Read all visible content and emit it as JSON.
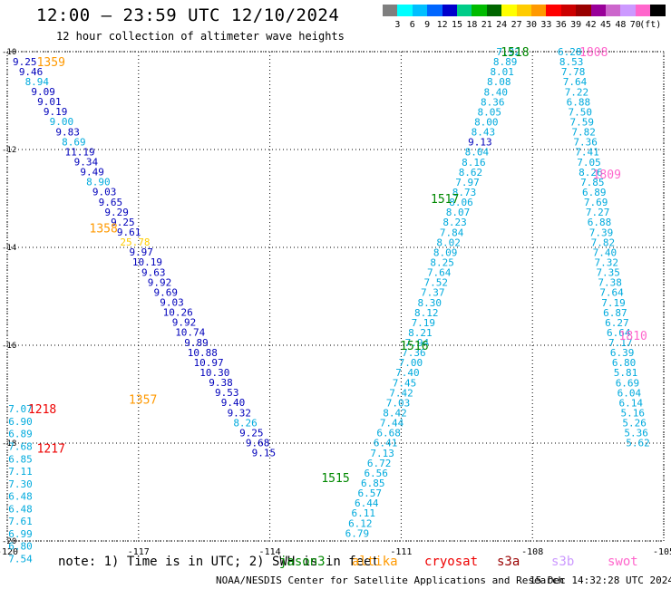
{
  "header": {
    "title": "12:00 – 23:59 UTC 12/10/2024",
    "subtitle": "12 hour collection of altimeter wave heights"
  },
  "legend": {
    "unit": "(ft)",
    "bins": [
      {
        "label": "",
        "color": "#7f7f7f"
      },
      {
        "label": "3",
        "color": "#00ffff"
      },
      {
        "label": "6",
        "color": "#00bfff"
      },
      {
        "label": "9",
        "color": "#0066ff"
      },
      {
        "label": "12",
        "color": "#0000cc"
      },
      {
        "label": "15",
        "color": "#00cc88"
      },
      {
        "label": "18",
        "color": "#00bb00"
      },
      {
        "label": "21",
        "color": "#006600"
      },
      {
        "label": "24",
        "color": "#ffff00"
      },
      {
        "label": "27",
        "color": "#ffcc00"
      },
      {
        "label": "30",
        "color": "#ff9900"
      },
      {
        "label": "33",
        "color": "#ff0000"
      },
      {
        "label": "36",
        "color": "#cc0000"
      },
      {
        "label": "39",
        "color": "#990000"
      },
      {
        "label": "42",
        "color": "#990099"
      },
      {
        "label": "45",
        "color": "#cc66cc"
      },
      {
        "label": "48",
        "color": "#cc99ff"
      },
      {
        "label": "70",
        "color": "#ff66cc"
      },
      {
        "label": "",
        "color": "#000000"
      }
    ]
  },
  "map": {
    "lon_range": [
      -120,
      -105
    ],
    "lat_range": [
      -20,
      -10
    ],
    "lon_ticks": [
      "-120",
      "-117",
      "-114",
      "-111",
      "-108",
      "-105"
    ],
    "lat_ticks": [
      "-10",
      "-12",
      "-14",
      "-16",
      "-18",
      "-20"
    ]
  },
  "colors": {
    "c1": "#00aadd",
    "c2": "#0000bb",
    "c3": "#ffcc00",
    "orange": "#ff9900",
    "red": "#ee0000",
    "green": "#008800",
    "pink": "#ff66cc"
  },
  "pass_labels": [
    {
      "text": "1359",
      "lon": -119.0,
      "lat": -10.2,
      "color": "#ff9900"
    },
    {
      "text": "1358",
      "lon": -117.8,
      "lat": -13.6,
      "color": "#ff9900"
    },
    {
      "text": "1357",
      "lon": -116.9,
      "lat": -17.1,
      "color": "#ff9900"
    },
    {
      "text": "1218",
      "lon": -119.2,
      "lat": -17.3,
      "color": "#ee0000"
    },
    {
      "text": "1217",
      "lon": -119.0,
      "lat": -18.1,
      "color": "#ee0000"
    },
    {
      "text": "1518",
      "lon": -108.4,
      "lat": -10.0,
      "color": "#008800"
    },
    {
      "text": "1517",
      "lon": -110.0,
      "lat": -13.0,
      "color": "#008800"
    },
    {
      "text": "1516",
      "lon": -110.7,
      "lat": -16.0,
      "color": "#008800"
    },
    {
      "text": "1515",
      "lon": -112.5,
      "lat": -18.7,
      "color": "#008800"
    },
    {
      "text": "1808",
      "lon": -106.6,
      "lat": -10.0,
      "color": "#ff66cc"
    },
    {
      "text": "1809",
      "lon": -106.3,
      "lat": -12.5,
      "color": "#ff66cc"
    },
    {
      "text": "1810",
      "lon": -105.7,
      "lat": -15.8,
      "color": "#ff66cc"
    }
  ],
  "tracks": [
    {
      "name": "1359",
      "start": [
        -119.6,
        -10.2
      ],
      "step": [
        0.14,
        -0.205
      ],
      "values": [
        [
          "9.25",
          "c2"
        ],
        [
          "9.46",
          "c2"
        ],
        [
          "8.94",
          "c1"
        ],
        [
          "9.09",
          "c2"
        ],
        [
          "9.01",
          "c2"
        ],
        [
          "9.19",
          "c2"
        ],
        [
          "9.00",
          "c1"
        ],
        [
          "9.83",
          "c2"
        ],
        [
          "8.69",
          "c1"
        ],
        [
          "11.19",
          "c2"
        ],
        [
          "9.34",
          "c2"
        ],
        [
          "9.49",
          "c2"
        ],
        [
          "8.90",
          "c1"
        ],
        [
          "9.03",
          "c2"
        ],
        [
          "9.65",
          "c2"
        ],
        [
          "9.29",
          "c2"
        ],
        [
          "9.25",
          "c2"
        ],
        [
          "9.61",
          "c2"
        ],
        [
          "25.78",
          "c3"
        ],
        [
          "9.97",
          "c2"
        ],
        [
          "10.19",
          "c2"
        ],
        [
          "9.63",
          "c2"
        ],
        [
          "9.92",
          "c2"
        ],
        [
          "9.69",
          "c2"
        ],
        [
          "9.03",
          "c2"
        ],
        [
          "10.26",
          "c2"
        ],
        [
          "9.92",
          "c2"
        ],
        [
          "10.74",
          "c2"
        ],
        [
          "9.89",
          "c2"
        ],
        [
          "10.88",
          "c2"
        ],
        [
          "10.97",
          "c2"
        ],
        [
          "10.30",
          "c2"
        ],
        [
          "9.38",
          "c2"
        ],
        [
          "9.53",
          "c2"
        ],
        [
          "9.40",
          "c2"
        ],
        [
          "9.32",
          "c2"
        ],
        [
          "8.26",
          "c1"
        ],
        [
          "9.25",
          "c2"
        ],
        [
          "9.68",
          "c2"
        ],
        [
          "9.15",
          "c2"
        ]
      ]
    },
    {
      "name": "1218",
      "start": [
        -119.7,
        -17.3
      ],
      "step": [
        0.0,
        -0.255
      ],
      "values": [
        [
          "7.07",
          "c1"
        ],
        [
          "6.90",
          "c1"
        ],
        [
          "6.89",
          "c1"
        ],
        [
          "7.68",
          "c1"
        ],
        [
          "6.85",
          "c1"
        ],
        [
          "7.11",
          "c1"
        ],
        [
          "7.30",
          "c1"
        ],
        [
          "6.48",
          "c1"
        ],
        [
          "6.48",
          "c1"
        ],
        [
          "7.61",
          "c1"
        ],
        [
          "6.99",
          "c1"
        ],
        [
          "6.80",
          "c1"
        ],
        [
          "7.54",
          "c1"
        ]
      ]
    },
    {
      "name": "1518",
      "start": [
        -108.55,
        -10.0
      ],
      "step": [
        -0.072,
        -0.205
      ],
      "values": [
        [
          "7.92",
          "c1"
        ],
        [
          "8.89",
          "c1"
        ],
        [
          "8.01",
          "c1"
        ],
        [
          "8.08",
          "c1"
        ],
        [
          "8.40",
          "c1"
        ],
        [
          "8.36",
          "c1"
        ],
        [
          "8.05",
          "c1"
        ],
        [
          "8.00",
          "c1"
        ],
        [
          "8.43",
          "c1"
        ],
        [
          "9.13",
          "c2"
        ],
        [
          "8.04",
          "c1"
        ],
        [
          "8.16",
          "c1"
        ],
        [
          "8.62",
          "c1"
        ],
        [
          "7.97",
          "c1"
        ],
        [
          "8.73",
          "c1"
        ],
        [
          "8.06",
          "c1"
        ],
        [
          "8.07",
          "c1"
        ],
        [
          "8.23",
          "c1"
        ],
        [
          "7.84",
          "c1"
        ],
        [
          "8.02",
          "c1"
        ],
        [
          "8.09",
          "c1"
        ],
        [
          "8.25",
          "c1"
        ],
        [
          "7.64",
          "c1"
        ],
        [
          "7.52",
          "c1"
        ],
        [
          "7.37",
          "c1"
        ],
        [
          "8.30",
          "c1"
        ],
        [
          "8.12",
          "c1"
        ],
        [
          "7.19",
          "c1"
        ],
        [
          "8.21",
          "c1"
        ],
        [
          "7.94",
          "c1"
        ],
        [
          "7.36",
          "c1"
        ],
        [
          "7.00",
          "c1"
        ],
        [
          "7.40",
          "c1"
        ],
        [
          "7.45",
          "c1"
        ],
        [
          "7.42",
          "c1"
        ],
        [
          "7.03",
          "c1"
        ],
        [
          "8.42",
          "c1"
        ],
        [
          "7.44",
          "c1"
        ],
        [
          "6.68",
          "c1"
        ],
        [
          "6.41",
          "c1"
        ],
        [
          "7.13",
          "c1"
        ],
        [
          "6.72",
          "c1"
        ],
        [
          "6.56",
          "c1"
        ],
        [
          "6.85",
          "c1"
        ],
        [
          "6.57",
          "c1"
        ],
        [
          "6.44",
          "c1"
        ],
        [
          "6.11",
          "c1"
        ],
        [
          "6.12",
          "c1"
        ],
        [
          "6.79",
          "c1"
        ]
      ]
    },
    {
      "name": "1808",
      "start": [
        -107.15,
        -10.0
      ],
      "step": [
        0.04,
        -0.205
      ],
      "values": [
        [
          "6.28",
          "c1"
        ],
        [
          "8.53",
          "c1"
        ],
        [
          "7.78",
          "c1"
        ],
        [
          "7.64",
          "c1"
        ],
        [
          "7.22",
          "c1"
        ],
        [
          "6.88",
          "c1"
        ],
        [
          "7.50",
          "c1"
        ],
        [
          "7.59",
          "c1"
        ],
        [
          "7.82",
          "c1"
        ],
        [
          "7.36",
          "c1"
        ],
        [
          "7.41",
          "c1"
        ],
        [
          "7.05",
          "c1"
        ],
        [
          "8.26",
          "c1"
        ],
        [
          "7.85",
          "c1"
        ],
        [
          "6.89",
          "c1"
        ],
        [
          "7.69",
          "c1"
        ],
        [
          "7.27",
          "c1"
        ],
        [
          "6.88",
          "c1"
        ],
        [
          "7.39",
          "c1"
        ],
        [
          "7.82",
          "c1"
        ],
        [
          "7.40",
          "c1"
        ],
        [
          "7.32",
          "c1"
        ],
        [
          "7.35",
          "c1"
        ],
        [
          "7.38",
          "c1"
        ],
        [
          "7.64",
          "c1"
        ],
        [
          "7.19",
          "c1"
        ],
        [
          "6.87",
          "c1"
        ],
        [
          "6.27",
          "c1"
        ],
        [
          "6.64",
          "c1"
        ],
        [
          "7.17",
          "c1"
        ],
        [
          "6.39",
          "c1"
        ],
        [
          "6.80",
          "c1"
        ],
        [
          "5.81",
          "c1"
        ],
        [
          "6.69",
          "c1"
        ],
        [
          "6.04",
          "c1"
        ],
        [
          "6.14",
          "c1"
        ],
        [
          "5.16",
          "c1"
        ],
        [
          "5.26",
          "c1"
        ],
        [
          "5.36",
          "c1"
        ],
        [
          "5.62",
          "c1"
        ]
      ]
    }
  ],
  "footer": {
    "note": "note: 1) Time is in UTC; 2) SWH is in feet",
    "satellites": [
      {
        "name": "jason3",
        "color": "#008800",
        "left": 308
      },
      {
        "name": "altika",
        "color": "#ff9900",
        "left": 388
      },
      {
        "name": "cryosat",
        "color": "#ee0000",
        "left": 468
      },
      {
        "name": "s3a",
        "color": "#990000",
        "left": 548
      },
      {
        "name": "s3b",
        "color": "#cc99ff",
        "left": 608
      },
      {
        "name": "swot",
        "color": "#ff66cc",
        "left": 670
      }
    ],
    "credit": "NOAA/NESDIS Center for Satellite Applications and Research",
    "timestamp": "15 Dec 14:32:28 UTC 2024"
  }
}
